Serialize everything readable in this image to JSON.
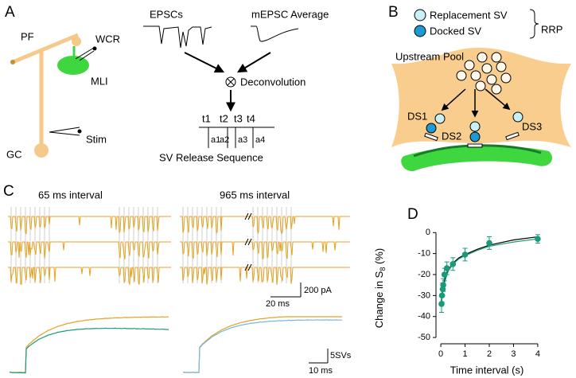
{
  "panels": {
    "a": {
      "label": "A",
      "pf": "PF",
      "wcr": "WCR",
      "mli": "MLI",
      "stim": "Stim",
      "gc": "GC",
      "epscs": "EPSCs",
      "mepsc": "mEPSC Average",
      "deconvolution": "Deconvolution",
      "times": [
        "t1",
        "t2",
        "t3",
        "t4"
      ],
      "amps": [
        "a1",
        "a2",
        "a3",
        "a4"
      ],
      "caption": "SV Release Sequence"
    },
    "b": {
      "label": "B",
      "legend": [
        "Replacement SV",
        "Docked SV"
      ],
      "rrp": "RRP",
      "pool": "Upstream Pool",
      "sites": [
        "DS1",
        "DS2",
        "DS3"
      ]
    },
    "c": {
      "label": "C",
      "titles": [
        "65 ms interval",
        "965 ms interval"
      ],
      "scale_current": "200 pA",
      "scale_time": "20 ms",
      "scale_svs": "5SVs",
      "scale_time_2": "10 ms"
    }
  },
  "chart_data": {
    "type": "scatter",
    "panel_label": "D",
    "xlabel": "Time interval (s)",
    "ylabel_parts": [
      "Change in S",
      "8",
      " (%)"
    ],
    "x": [
      0.03,
      0.05,
      0.08,
      0.1,
      0.15,
      0.25,
      0.5,
      1,
      2,
      4
    ],
    "y": [
      -34,
      -30,
      -27,
      -25,
      -20,
      -17,
      -15,
      -10.5,
      -5,
      -3
    ],
    "error": [
      4,
      3,
      3,
      3,
      3,
      3,
      3,
      3,
      3,
      2
    ],
    "color": "#1a9a78",
    "fits": [
      {
        "color": "#000000",
        "x": [
          0,
          0.1,
          0.2,
          0.3,
          0.5,
          0.75,
          1,
          1.5,
          2,
          3,
          4
        ],
        "y": [
          -34,
          -26,
          -21,
          -18,
          -14.5,
          -12,
          -10.5,
          -8,
          -6,
          -3.5,
          -2
        ]
      },
      {
        "color": "#1a9a78",
        "x": [
          0,
          0.1,
          0.2,
          0.3,
          0.5,
          0.75,
          1,
          1.5,
          2,
          3,
          4
        ],
        "y": [
          -34,
          -26.5,
          -22,
          -18.5,
          -15,
          -12.5,
          -11,
          -8.5,
          -6.5,
          -4.5,
          -3
        ]
      }
    ],
    "xlim": [
      -0.2,
      4.2
    ],
    "ylim": [
      -53,
      2
    ],
    "xticks": [
      0,
      1,
      2,
      3,
      4
    ],
    "yticks": [
      0,
      -10,
      -20,
      -30,
      -40,
      -50
    ]
  }
}
